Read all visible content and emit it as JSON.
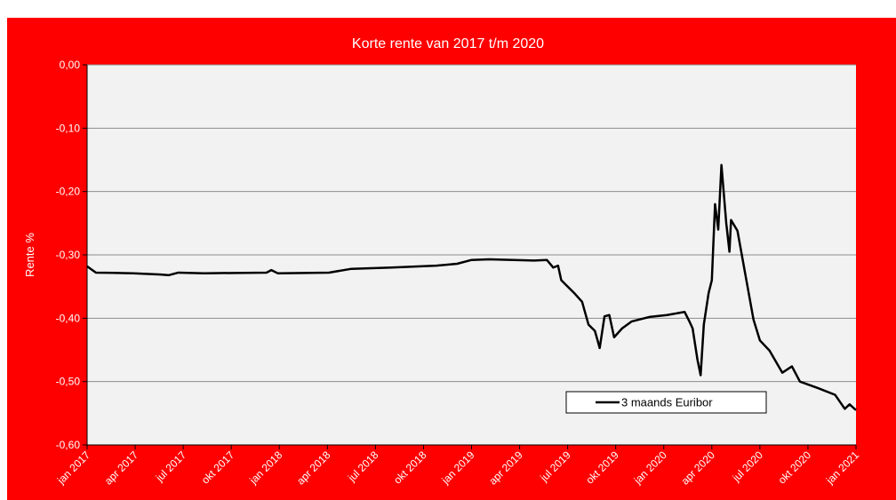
{
  "chart_data": {
    "type": "line",
    "title": "Korte rente van 2017 t/m 2020",
    "y_label": "Rente %",
    "xlim": [
      0,
      48
    ],
    "xticks": [
      {
        "value": 0,
        "label": "jan 2017"
      },
      {
        "value": 3,
        "label": "apr 2017"
      },
      {
        "value": 6,
        "label": "jul 2017"
      },
      {
        "value": 9,
        "label": "okt 2017"
      },
      {
        "value": 12,
        "label": "jan 2018"
      },
      {
        "value": 15,
        "label": "apr 2018"
      },
      {
        "value": 18,
        "label": "jul 2018"
      },
      {
        "value": 21,
        "label": "okt 2018"
      },
      {
        "value": 24,
        "label": "jan 2019"
      },
      {
        "value": 27,
        "label": "apr 2019"
      },
      {
        "value": 30,
        "label": "jul 2019"
      },
      {
        "value": 33,
        "label": "okt 2019"
      },
      {
        "value": 36,
        "label": "jan 2020"
      },
      {
        "value": 39,
        "label": "apr 2020"
      },
      {
        "value": 42,
        "label": "jul 2020"
      },
      {
        "value": 45,
        "label": "okt 2020"
      },
      {
        "value": 48,
        "label": "jan 2021"
      }
    ],
    "ylim": [
      -0.6,
      0
    ],
    "yticks": [
      {
        "value": 0,
        "label": "0,00"
      },
      {
        "value": -0.1,
        "label": "-0,10"
      },
      {
        "value": -0.2,
        "label": "-0,20"
      },
      {
        "value": -0.3,
        "label": "-0,30"
      },
      {
        "value": -0.4,
        "label": "-0,40"
      },
      {
        "value": -0.5,
        "label": "-0,50"
      },
      {
        "value": -0.6,
        "label": "-0,60"
      }
    ],
    "grid": true,
    "legend": "lower right",
    "x": [
      0,
      0.55,
      2.9,
      4.6,
      5.1,
      5.7,
      7.3,
      11.2,
      11.5,
      11.9,
      15.1,
      16.5,
      19,
      21.8,
      23.1,
      24,
      25.1,
      27.9,
      28.7,
      29.1,
      29.4,
      29.6,
      30.4,
      30.9,
      31.3,
      31.7,
      32,
      32.3,
      32.6,
      32.9,
      33.4,
      34,
      35.1,
      36.2,
      37.3,
      37.6,
      37.8,
      38.1,
      38.3,
      38.5,
      38.8,
      39,
      39.2,
      39.4,
      39.6,
      39.9,
      40.1,
      40.2,
      40.6,
      40.9,
      41.2,
      41.3,
      41.6,
      42,
      42.6,
      43.4,
      44,
      44.5,
      45.6,
      46.7,
      47.3,
      47.6,
      48
    ],
    "series": [
      {
        "name": "3 maands Euribor",
        "color": "#000000",
        "values": [
          -0.318,
          -0.328,
          -0.329,
          -0.331,
          -0.332,
          -0.328,
          -0.329,
          -0.328,
          -0.324,
          -0.329,
          -0.328,
          -0.322,
          -0.32,
          -0.317,
          -0.314,
          -0.308,
          -0.307,
          -0.309,
          -0.308,
          -0.32,
          -0.317,
          -0.34,
          -0.36,
          -0.374,
          -0.41,
          -0.42,
          -0.447,
          -0.397,
          -0.395,
          -0.43,
          -0.416,
          -0.405,
          -0.398,
          -0.395,
          -0.39,
          -0.405,
          -0.416,
          -0.465,
          -0.49,
          -0.41,
          -0.36,
          -0.34,
          -0.22,
          -0.26,
          -0.158,
          -0.25,
          -0.295,
          -0.245,
          -0.262,
          -0.304,
          -0.346,
          -0.36,
          -0.402,
          -0.435,
          -0.451,
          -0.486,
          -0.476,
          -0.5,
          -0.51,
          -0.521,
          -0.543,
          -0.536,
          -0.545
        ]
      }
    ]
  }
}
